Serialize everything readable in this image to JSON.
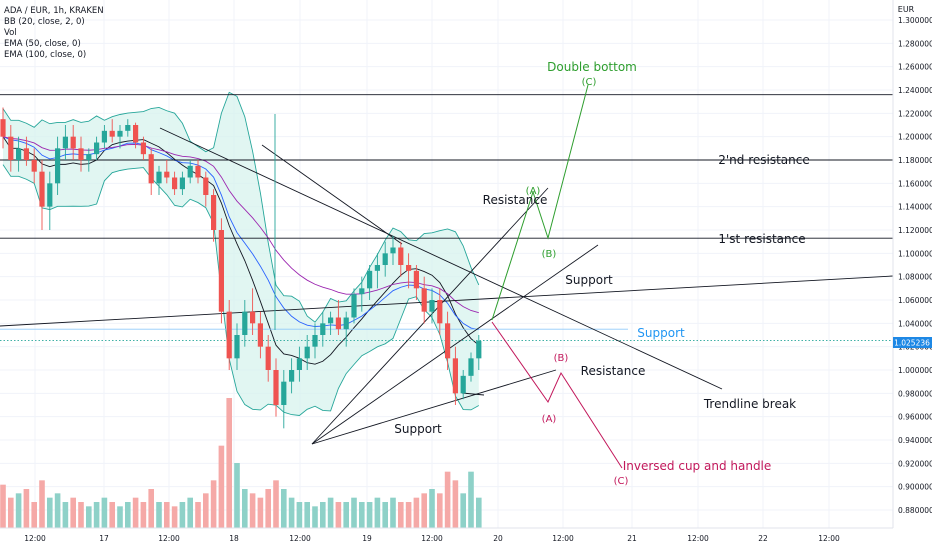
{
  "legend": {
    "title": "ADA / EUR, 1h, KRAKEN",
    "bb": "BB (20, close, 2, 0)",
    "vol": "Vol",
    "ema50": "EMA (50, close, 0)",
    "ema100": "EMA (100, close, 0)"
  },
  "chart_data": {
    "type": "candlestick",
    "currency": "EUR",
    "y_ticks": [
      "1.300000",
      "1.280000",
      "1.260000",
      "1.240000",
      "1.220000",
      "1.200000",
      "1.180000",
      "1.160000",
      "1.140000",
      "1.120000",
      "1.100000",
      "1.080000",
      "1.060000",
      "1.040000",
      "1.020000",
      "1.000000",
      "0.980000",
      "0.960000",
      "0.940000",
      "0.920000",
      "0.900000",
      "0.880000"
    ],
    "y_range": [
      0.872,
      1.302
    ],
    "x_ticks": [
      "12:00",
      "17",
      "12:00",
      "18",
      "12:00",
      "19",
      "12:00",
      "20",
      "12:00",
      "21",
      "12:00",
      "22",
      "12:00"
    ],
    "last_price": "1.025236",
    "colors": {
      "up": "#26a69a",
      "down": "#ef5350",
      "bb_fill": "#d4f2ec",
      "bb_line": "#26a69a",
      "ema50": "#2962ff",
      "ema100": "#9c27b0",
      "green": "#2e9e2e",
      "crimson": "#c2185b",
      "support_blue": "#2196f3"
    },
    "candles": [
      [
        1.215,
        1.225,
        1.19,
        1.2
      ],
      [
        1.2,
        1.21,
        1.17,
        1.18
      ],
      [
        1.18,
        1.2,
        1.17,
        1.19
      ],
      [
        1.19,
        1.2,
        1.175,
        1.18
      ],
      [
        1.18,
        1.19,
        1.16,
        1.17
      ],
      [
        1.17,
        1.18,
        1.12,
        1.14
      ],
      [
        1.14,
        1.17,
        1.12,
        1.16
      ],
      [
        1.16,
        1.2,
        1.15,
        1.19
      ],
      [
        1.19,
        1.21,
        1.18,
        1.2
      ],
      [
        1.2,
        1.21,
        1.18,
        1.19
      ],
      [
        1.19,
        1.2,
        1.17,
        1.18
      ],
      [
        1.18,
        1.19,
        1.17,
        1.185
      ],
      [
        1.185,
        1.2,
        1.18,
        1.195
      ],
      [
        1.195,
        1.21,
        1.19,
        1.205
      ],
      [
        1.205,
        1.215,
        1.195,
        1.2
      ],
      [
        1.2,
        1.21,
        1.19,
        1.205
      ],
      [
        1.205,
        1.215,
        1.2,
        1.21
      ],
      [
        1.21,
        1.212,
        1.19,
        1.195
      ],
      [
        1.195,
        1.2,
        1.18,
        1.185
      ],
      [
        1.185,
        1.19,
        1.15,
        1.16
      ],
      [
        1.16,
        1.175,
        1.15,
        1.17
      ],
      [
        1.17,
        1.18,
        1.16,
        1.165
      ],
      [
        1.165,
        1.17,
        1.15,
        1.155
      ],
      [
        1.155,
        1.17,
        1.15,
        1.165
      ],
      [
        1.165,
        1.18,
        1.16,
        1.175
      ],
      [
        1.175,
        1.18,
        1.16,
        1.165
      ],
      [
        1.165,
        1.17,
        1.14,
        1.15
      ],
      [
        1.15,
        1.155,
        1.11,
        1.12
      ],
      [
        1.12,
        1.13,
        1.04,
        1.05
      ],
      [
        1.05,
        1.06,
        1.0,
        1.01
      ],
      [
        1.01,
        1.04,
        1.0,
        1.03
      ],
      [
        1.03,
        1.06,
        1.02,
        1.05
      ],
      [
        1.05,
        1.07,
        1.03,
        1.04
      ],
      [
        1.04,
        1.05,
        1.01,
        1.02
      ],
      [
        1.02,
        1.03,
        0.99,
        1.0
      ],
      [
        1.0,
        1.01,
        0.96,
        0.97
      ],
      [
        0.97,
        1.0,
        0.95,
        0.99
      ],
      [
        0.99,
        1.01,
        0.98,
        1.0
      ],
      [
        1.0,
        1.02,
        0.99,
        1.01
      ],
      [
        1.01,
        1.03,
        1.0,
        1.02
      ],
      [
        1.02,
        1.04,
        1.01,
        1.03
      ],
      [
        1.03,
        1.05,
        1.02,
        1.04
      ],
      [
        1.04,
        1.05,
        1.03,
        1.045
      ],
      [
        1.045,
        1.06,
        1.03,
        1.035
      ],
      [
        1.035,
        1.05,
        1.02,
        1.045
      ],
      [
        1.045,
        1.07,
        1.04,
        1.065
      ],
      [
        1.065,
        1.08,
        1.05,
        1.07
      ],
      [
        1.07,
        1.09,
        1.06,
        1.085
      ],
      [
        1.085,
        1.1,
        1.07,
        1.09
      ],
      [
        1.09,
        1.11,
        1.08,
        1.1
      ],
      [
        1.1,
        1.115,
        1.09,
        1.105
      ],
      [
        1.105,
        1.11,
        1.08,
        1.09
      ],
      [
        1.09,
        1.1,
        1.07,
        1.085
      ],
      [
        1.085,
        1.09,
        1.06,
        1.07
      ],
      [
        1.07,
        1.08,
        1.04,
        1.05
      ],
      [
        1.05,
        1.07,
        1.04,
        1.06
      ],
      [
        1.06,
        1.07,
        1.03,
        1.04
      ],
      [
        1.04,
        1.05,
        1.0,
        1.01
      ],
      [
        1.01,
        1.02,
        0.97,
        0.98
      ],
      [
        0.98,
        1.0,
        0.975,
        0.995
      ],
      [
        0.995,
        1.015,
        0.99,
        1.01
      ],
      [
        1.01,
        1.03,
        1.0,
        1.025
      ]
    ],
    "volume": [
      0.5,
      0.35,
      0.4,
      0.45,
      0.3,
      0.55,
      0.35,
      0.4,
      0.3,
      0.35,
      0.3,
      0.25,
      0.3,
      0.35,
      0.3,
      0.25,
      0.3,
      0.35,
      0.3,
      0.45,
      0.3,
      0.3,
      0.25,
      0.3,
      0.35,
      0.3,
      0.4,
      0.55,
      0.95,
      1.5,
      0.75,
      0.45,
      0.4,
      0.35,
      0.45,
      0.55,
      0.45,
      0.35,
      0.3,
      0.3,
      0.25,
      0.3,
      0.35,
      0.3,
      0.3,
      0.35,
      0.3,
      0.3,
      0.35,
      0.3,
      0.35,
      0.3,
      0.3,
      0.35,
      0.4,
      0.45,
      0.4,
      0.65,
      0.55,
      0.4,
      0.65,
      0.35
    ],
    "horizontal_lines": [
      {
        "price": 1.236,
        "label": ""
      },
      {
        "price": 1.18,
        "label": "2'nd resistance"
      },
      {
        "price": 1.113,
        "label": "1'st resistance"
      }
    ],
    "annotations": {
      "double_bottom": "Double bottom",
      "green_c": "(C)",
      "green_a": "(A)",
      "green_b": "(B)",
      "resistance_upper": "Resistance",
      "support_right": "Support",
      "support_blue": "Support",
      "crimson_b": "(B)",
      "resistance_lower": "Resistance",
      "crimson_a": "(A)",
      "trendline_break": "Trendline break",
      "support_bottom": "Support",
      "inversed_cup": "Inversed cup and handle",
      "crimson_c": "(C)"
    }
  }
}
